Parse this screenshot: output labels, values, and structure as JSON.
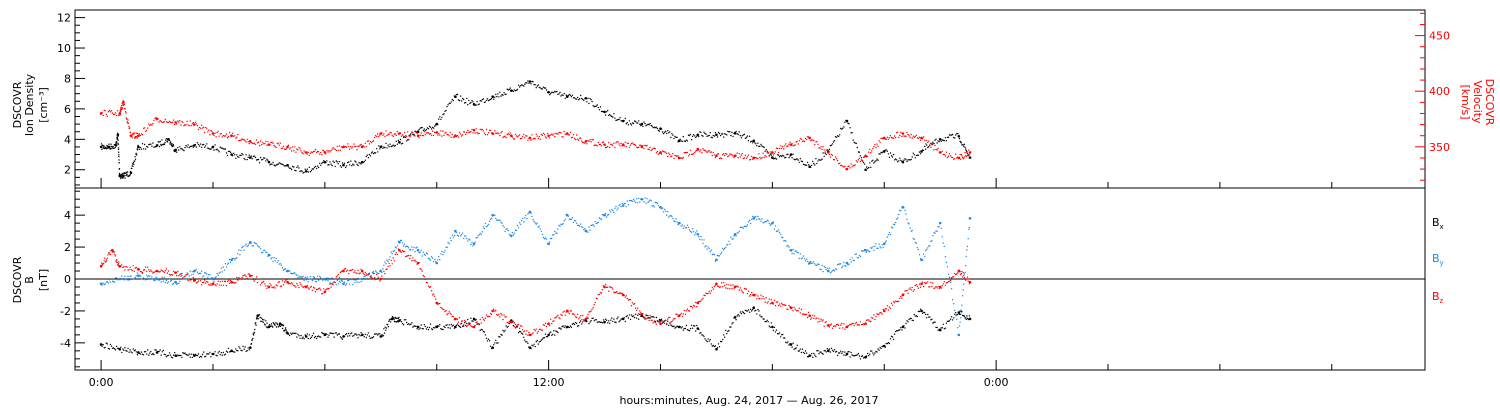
{
  "chart_data": [
    {
      "type": "scatter",
      "panel": "solar-wind-plasma",
      "ylabel": [
        "DSCOVR",
        "Ion Density",
        "[cm⁻³]"
      ],
      "ylabel_right": [
        "DSCOVR",
        "Velocity",
        "[km/s]"
      ],
      "ylim": [
        0.8,
        12.5
      ],
      "ylim_right": [
        313,
        473
      ],
      "yticks": [
        2,
        4,
        6,
        8,
        10,
        12
      ],
      "yticks_right": [
        350,
        400,
        450
      ],
      "series": [
        {
          "name": "Ion Density",
          "axis": "left",
          "color": "#000000",
          "x": [
            0,
            0.2,
            0.4,
            0.45,
            0.5,
            0.6,
            0.8,
            1,
            1.5,
            1.8,
            2,
            2.5,
            3,
            3.5,
            4,
            4.5,
            5,
            5.5,
            6,
            6.5,
            7,
            7.5,
            8,
            8.5,
            9,
            9.5,
            10,
            10.5,
            11,
            11.5,
            12,
            12.5,
            13,
            13.5,
            14,
            14.5,
            15,
            15.5,
            16,
            16.5,
            17,
            17.5,
            18,
            18.5,
            19,
            19.5,
            20,
            20.5,
            21,
            21.5,
            22,
            22.5,
            23,
            23.3
          ],
          "y": [
            3.5,
            3.5,
            3.6,
            4.3,
            1.6,
            1.6,
            1.8,
            3.5,
            3.6,
            4.0,
            3.3,
            3.6,
            3.5,
            3.0,
            2.8,
            2.5,
            2.3,
            1.9,
            2.5,
            2.3,
            2.5,
            3.5,
            3.8,
            4.5,
            5.0,
            6.8,
            6.3,
            6.8,
            7.2,
            7.8,
            7.1,
            6.8,
            6.7,
            5.8,
            5.2,
            5.0,
            4.7,
            3.9,
            4.3,
            4.3,
            4.4,
            3.9,
            2.8,
            3.0,
            2.2,
            3.2,
            5.2,
            2.0,
            3.2,
            2.5,
            3.2,
            4.0,
            4.2,
            2.8
          ]
        },
        {
          "name": "Velocity",
          "axis": "right",
          "color": "#ff0000",
          "x": [
            0,
            0.5,
            0.6,
            0.8,
            1,
            1.5,
            2,
            2.5,
            3,
            3.5,
            4,
            4.5,
            5,
            5.5,
            6,
            6.5,
            7,
            7.5,
            8,
            8.5,
            9,
            9.5,
            10,
            10.5,
            11,
            11.5,
            12,
            12.5,
            13,
            13.5,
            14,
            14.5,
            15,
            15.5,
            16,
            16.5,
            17,
            17.5,
            18,
            18.5,
            19,
            19.5,
            20,
            20.5,
            21,
            21.5,
            22,
            22.5,
            23,
            23.3
          ],
          "y": [
            380,
            380,
            390,
            360,
            360,
            375,
            372,
            370,
            362,
            360,
            355,
            352,
            350,
            345,
            345,
            350,
            350,
            362,
            362,
            360,
            363,
            360,
            365,
            362,
            360,
            358,
            360,
            362,
            355,
            352,
            352,
            350,
            345,
            340,
            348,
            342,
            342,
            340,
            345,
            352,
            358,
            345,
            330,
            342,
            358,
            362,
            358,
            345,
            340,
            345
          ]
        }
      ]
    },
    {
      "type": "scatter",
      "panel": "magnetic-field",
      "ylabel": [
        "DSCOVR",
        "B",
        "[nT]"
      ],
      "ylim": [
        -5.7,
        5.7
      ],
      "yticks": [
        -4,
        -2,
        0,
        2,
        4
      ],
      "xlabel": "hours:minutes, Aug. 24, 2017 — Aug. 26, 2017",
      "xticks": [
        "0:00",
        "12:00",
        "0:00"
      ],
      "xlim_hours": [
        -0.7,
        35.5
      ],
      "legend_position": "right",
      "series": [
        {
          "name": "B",
          "subscript": "x",
          "color": "#000000",
          "x": [
            0,
            0.5,
            1,
            1.5,
            2,
            2.5,
            3,
            3.5,
            4,
            4.2,
            4.5,
            4.8,
            5,
            5.5,
            6,
            6.5,
            7,
            7.5,
            7.8,
            8,
            8.5,
            9,
            9.5,
            10,
            10.5,
            11,
            11.5,
            12,
            12.5,
            13,
            13.5,
            14,
            14.5,
            15,
            15.5,
            16,
            16.5,
            17,
            17.5,
            18,
            18.5,
            19,
            19.5,
            20,
            20.5,
            21,
            21.5,
            22,
            22.5,
            23,
            23.3
          ],
          "y": [
            -4.1,
            -4.4,
            -4.6,
            -4.6,
            -4.8,
            -4.8,
            -4.7,
            -4.5,
            -4.3,
            -2.3,
            -3.0,
            -2.8,
            -3.4,
            -3.6,
            -3.5,
            -3.6,
            -3.5,
            -3.6,
            -2.5,
            -2.6,
            -3.0,
            -3.0,
            -3.0,
            -2.5,
            -4.3,
            -2.6,
            -4.3,
            -3.5,
            -3.0,
            -2.6,
            -2.7,
            -2.5,
            -2.3,
            -2.6,
            -3.0,
            -3.1,
            -4.4,
            -2.4,
            -1.8,
            -3.0,
            -4.1,
            -4.8,
            -4.5,
            -4.7,
            -4.9,
            -4.2,
            -3.0,
            -2.0,
            -3.2,
            -2.1,
            -2.5
          ]
        },
        {
          "name": "B",
          "subscript": "y",
          "color": "#1f87e5",
          "x": [
            0,
            0.5,
            1,
            1.5,
            2,
            2.5,
            3,
            3.5,
            4,
            4.5,
            5,
            5.5,
            6,
            6.5,
            7,
            7.5,
            8,
            8.5,
            9,
            9.5,
            10,
            10.5,
            11,
            11.5,
            12,
            12.5,
            13,
            13.5,
            14,
            14.5,
            15,
            15.5,
            16,
            16.5,
            17,
            17.5,
            18,
            18.5,
            19,
            19.5,
            20,
            20.5,
            21,
            21.5,
            22,
            22.5,
            23,
            23.3
          ],
          "y": [
            -0.3,
            0.0,
            0.2,
            0.0,
            -0.2,
            0.5,
            0.0,
            1.2,
            2.3,
            1.5,
            0.5,
            0.0,
            0.0,
            -0.3,
            0.0,
            0.5,
            2.3,
            1.8,
            1.0,
            3.0,
            2.2,
            4.0,
            2.7,
            4.2,
            2.2,
            4.0,
            3.0,
            4.0,
            4.6,
            5.0,
            4.5,
            3.5,
            2.8,
            1.2,
            2.8,
            3.8,
            3.5,
            1.8,
            1.0,
            0.5,
            1.0,
            1.8,
            2.2,
            4.5,
            1.2,
            3.5,
            -3.5,
            3.8
          ]
        },
        {
          "name": "B",
          "subscript": "z",
          "color": "#ff0000",
          "x": [
            0,
            0.3,
            0.5,
            1,
            1.5,
            2,
            2.5,
            3,
            3.5,
            4,
            4.5,
            5,
            5.5,
            6,
            6.5,
            7,
            7.5,
            8,
            8.5,
            9,
            9.5,
            10,
            10.5,
            11,
            11.5,
            12,
            12.5,
            13,
            13.5,
            14,
            14.5,
            15,
            15.5,
            16,
            16.5,
            17,
            17.5,
            18,
            18.5,
            19,
            19.5,
            20,
            20.5,
            21,
            21.5,
            22,
            22.5,
            23,
            23.3
          ],
          "y": [
            0.8,
            1.8,
            0.8,
            0.6,
            0.5,
            0.4,
            -0.1,
            -0.3,
            -0.2,
            0.2,
            -0.5,
            -0.2,
            -0.5,
            -0.8,
            0.5,
            0.5,
            0.0,
            1.8,
            1.0,
            -1.5,
            -2.5,
            -3.0,
            -2.0,
            -2.7,
            -3.5,
            -2.8,
            -2.0,
            -2.5,
            -0.5,
            -1.0,
            -2.2,
            -2.8,
            -2.3,
            -1.5,
            -0.3,
            -0.5,
            -1.0,
            -1.5,
            -1.8,
            -2.3,
            -2.9,
            -3.0,
            -2.8,
            -2.0,
            -1.0,
            -0.3,
            -0.5,
            0.5,
            -0.2
          ]
        }
      ]
    }
  ]
}
